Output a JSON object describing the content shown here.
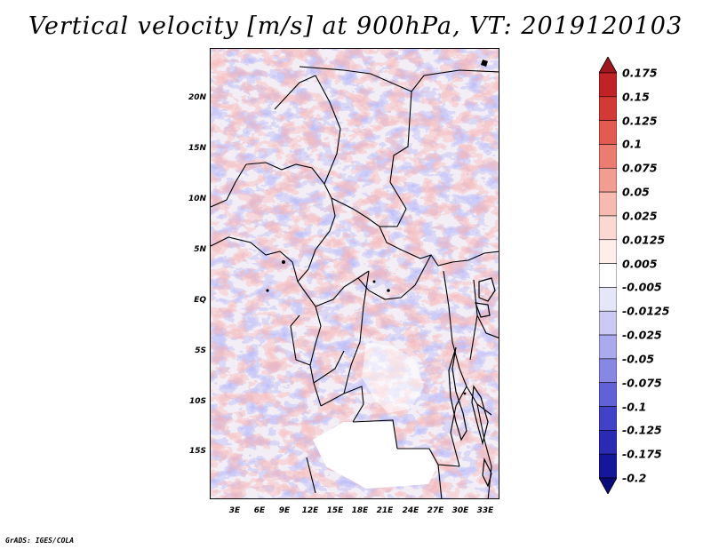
{
  "title": "Vertical velocity [m/s] at 900hPa, VT: 2019120103",
  "credit": "GrADS: IGES/COLA",
  "map": {
    "lat_labels": [
      "20N",
      "15N",
      "10N",
      "5N",
      "EQ",
      "5S",
      "10S",
      "15S"
    ],
    "lon_labels": [
      "3E",
      "6E",
      "9E",
      "12E",
      "15E",
      "18E",
      "21E",
      "24E",
      "27E",
      "30E",
      "33E"
    ],
    "lon_range": [
      0,
      35
    ],
    "lat_range": [
      -20,
      25
    ]
  },
  "colorbar": {
    "labels": [
      "0.175",
      "0.15",
      "0.125",
      "0.1",
      "0.075",
      "0.05",
      "0.025",
      "0.0125",
      "0.005",
      "-0.005",
      "-0.0125",
      "-0.025",
      "-0.05",
      "-0.075",
      "-0.1",
      "-0.125",
      "-0.175",
      "-0.2"
    ],
    "colors": [
      "#a0161f",
      "#c02226",
      "#d43a35",
      "#e25a50",
      "#ec7c70",
      "#f29d92",
      "#f7bab1",
      "#fbd8d2",
      "#fdeeea",
      "#ffffff",
      "#e6e6f9",
      "#cacaf4",
      "#aaaaee",
      "#8787e4",
      "#6262d8",
      "#4242c8",
      "#2a2ab4",
      "#16169a",
      "#0a0a7a"
    ]
  }
}
